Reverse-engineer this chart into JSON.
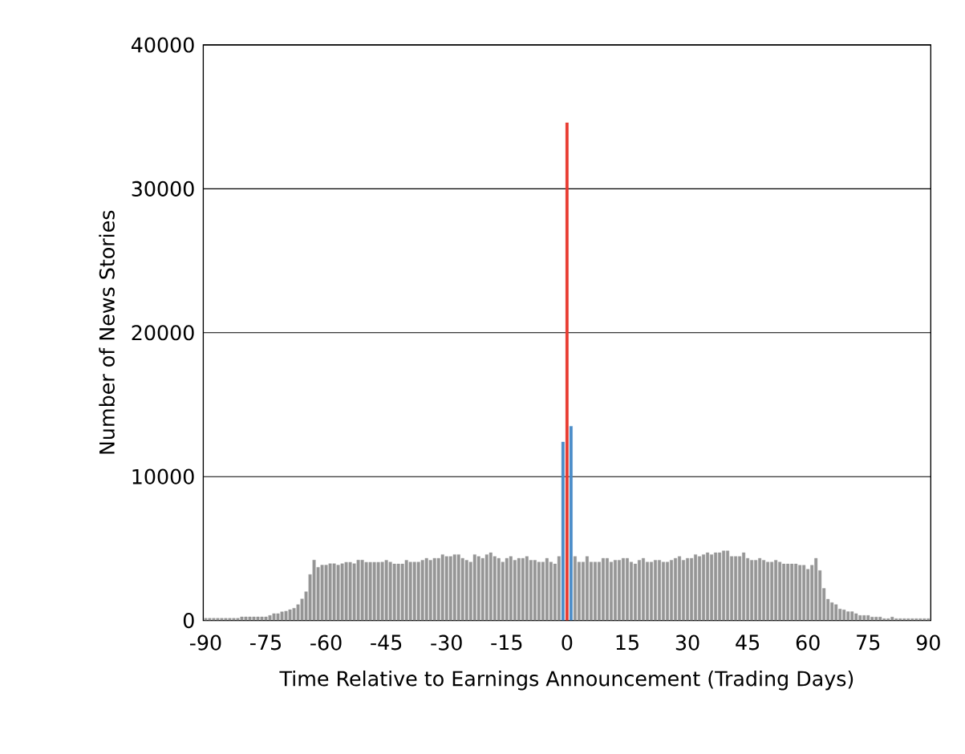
{
  "chart_data": {
    "type": "bar",
    "xlabel": "Time Relative to Earnings Announcement (Trading Days)",
    "ylabel": "Number of News Stories",
    "xlim": [
      -90.6,
      90.6
    ],
    "ylim": [
      0,
      40000
    ],
    "xticks": [
      -90,
      -75,
      -60,
      -45,
      -30,
      -15,
      0,
      15,
      30,
      45,
      60,
      75,
      90
    ],
    "yticks": [
      0,
      10000,
      20000,
      30000,
      40000
    ],
    "grid": "y",
    "series": [
      {
        "color": "#969696",
        "x": [
          -90,
          -89,
          -88,
          -87,
          -86,
          -85,
          -84,
          -83,
          -82,
          -81,
          -80,
          -79,
          -78,
          -77,
          -76,
          -75,
          -74,
          -73,
          -72,
          -71,
          -70,
          -69,
          -68,
          -67,
          -66,
          -65,
          -64,
          -63,
          -62,
          -61,
          -60,
          -59,
          -58,
          -57,
          -56,
          -55,
          -54,
          -53,
          -52,
          -51,
          -50,
          -49,
          -48,
          -47,
          -46,
          -45,
          -44,
          -43,
          -42,
          -41,
          -40,
          -39,
          -38,
          -37,
          -36,
          -35,
          -34,
          -33,
          -32,
          -31,
          -30,
          -29,
          -28,
          -27,
          -26,
          -25,
          -24,
          -23,
          -22,
          -21,
          -20,
          -19,
          -18,
          -17,
          -16,
          -15,
          -14,
          -13,
          -12,
          -11,
          -10,
          -9,
          -8,
          -7,
          -6,
          -5,
          -4,
          -3,
          -2,
          2,
          3,
          4,
          5,
          6,
          7,
          8,
          9,
          10,
          11,
          12,
          13,
          14,
          15,
          16,
          17,
          18,
          19,
          20,
          21,
          22,
          23,
          24,
          25,
          26,
          27,
          28,
          29,
          30,
          31,
          32,
          33,
          34,
          35,
          36,
          37,
          38,
          39,
          40,
          41,
          42,
          43,
          44,
          45,
          46,
          47,
          48,
          49,
          50,
          51,
          52,
          53,
          54,
          55,
          56,
          57,
          58,
          59,
          60,
          61,
          62,
          63,
          64,
          65,
          66,
          67,
          68,
          69,
          70,
          71,
          72,
          73,
          74,
          75,
          76,
          77,
          78,
          79,
          80,
          81,
          82,
          83,
          84,
          85,
          86,
          87,
          88,
          89,
          90
        ],
        "values": [
          150,
          150,
          150,
          150,
          150,
          150,
          150,
          150,
          150,
          250,
          250,
          250,
          250,
          250,
          250,
          250,
          350,
          480,
          480,
          600,
          650,
          750,
          850,
          1100,
          1500,
          2000,
          3200,
          4200,
          3700,
          3850,
          3850,
          3950,
          3950,
          3850,
          3950,
          4050,
          4050,
          3950,
          4200,
          4200,
          4050,
          4050,
          4050,
          4050,
          4060,
          4190,
          4060,
          3930,
          3930,
          3930,
          4190,
          4060,
          4060,
          4060,
          4190,
          4320,
          4190,
          4320,
          4320,
          4580,
          4450,
          4450,
          4580,
          4580,
          4320,
          4190,
          4060,
          4580,
          4450,
          4320,
          4580,
          4710,
          4450,
          4320,
          4060,
          4320,
          4450,
          4190,
          4320,
          4320,
          4450,
          4190,
          4190,
          4060,
          4060,
          4320,
          4060,
          3930,
          4450,
          4450,
          4060,
          4060,
          4450,
          4060,
          4060,
          4060,
          4320,
          4320,
          4060,
          4190,
          4190,
          4320,
          4320,
          4060,
          3930,
          4190,
          4320,
          4060,
          4060,
          4190,
          4190,
          4060,
          4060,
          4190,
          4320,
          4450,
          4190,
          4320,
          4320,
          4580,
          4450,
          4580,
          4710,
          4580,
          4710,
          4710,
          4840,
          4840,
          4450,
          4450,
          4450,
          4710,
          4320,
          4190,
          4190,
          4320,
          4190,
          4060,
          4060,
          4190,
          4060,
          3930,
          3930,
          3930,
          3930,
          3840,
          3840,
          3560,
          3840,
          4320,
          3470,
          2230,
          1480,
          1240,
          1110,
          800,
          740,
          610,
          610,
          480,
          350,
          350,
          350,
          240,
          240,
          240,
          130,
          130,
          240,
          130,
          130,
          130,
          130,
          130,
          130,
          130,
          130,
          130
        ]
      },
      {
        "color": "#4a8cc8",
        "x": [
          -1,
          1
        ],
        "values": [
          12400,
          13500
        ]
      },
      {
        "color": "#e8392f",
        "x": [
          0
        ],
        "values": [
          34600
        ]
      }
    ]
  }
}
